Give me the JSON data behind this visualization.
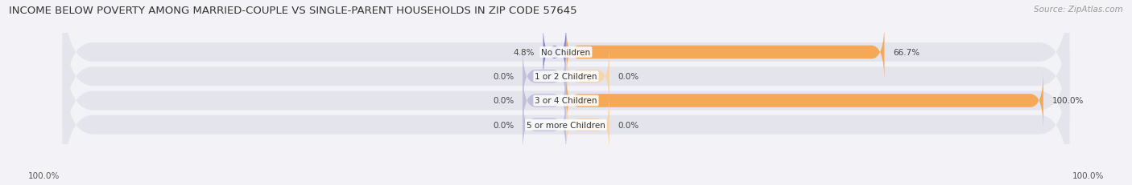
{
  "title": "INCOME BELOW POVERTY AMONG MARRIED-COUPLE VS SINGLE-PARENT HOUSEHOLDS IN ZIP CODE 57645",
  "source": "Source: ZipAtlas.com",
  "categories": [
    "No Children",
    "1 or 2 Children",
    "3 or 4 Children",
    "5 or more Children"
  ],
  "married_values": [
    4.8,
    0.0,
    0.0,
    0.0
  ],
  "single_values": [
    66.7,
    0.0,
    100.0,
    0.0
  ],
  "married_color": "#8888cc",
  "single_color": "#f5a957",
  "married_zero_color": "#c0c0dd",
  "single_zero_color": "#f5d5aa",
  "background_color": "#f2f2f7",
  "row_bg_color": "#e4e4ed",
  "title_fontsize": 9.5,
  "label_fontsize": 7.5,
  "tick_fontsize": 7.5,
  "legend_fontsize": 8,
  "max_val": 100.0,
  "left_label": "100.0%",
  "right_label": "100.0%",
  "axis_half": 55
}
